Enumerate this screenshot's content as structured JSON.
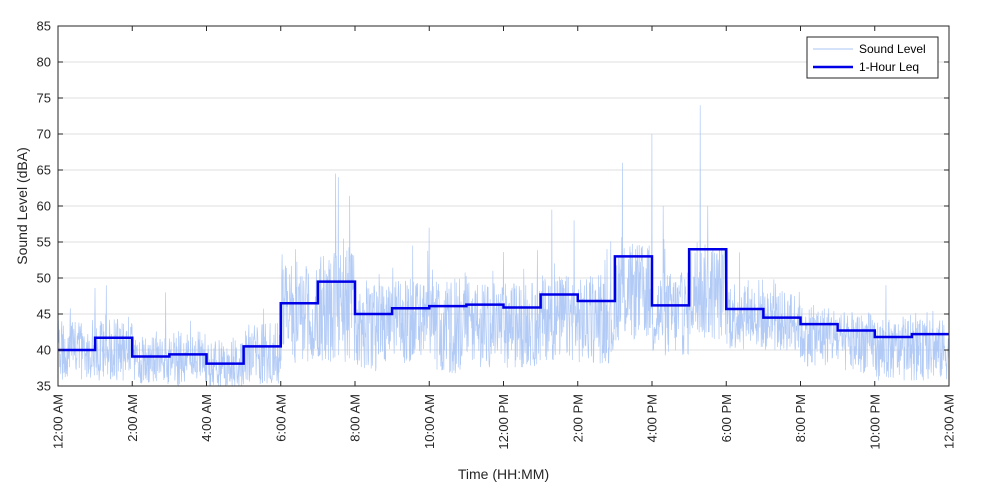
{
  "chart_data": {
    "type": "line",
    "xlabel": "Time (HH:MM)",
    "ylabel": "Sound Level (dBA)",
    "ylim": [
      35,
      85
    ],
    "yticks": [
      35,
      40,
      45,
      50,
      55,
      60,
      65,
      70,
      75,
      80,
      85
    ],
    "xlim_hours": [
      0,
      24
    ],
    "xticks": [
      {
        "hour": 0,
        "label": "12:00 AM"
      },
      {
        "hour": 2,
        "label": "2:00 AM"
      },
      {
        "hour": 4,
        "label": "4:00 AM"
      },
      {
        "hour": 6,
        "label": "6:00 AM"
      },
      {
        "hour": 8,
        "label": "8:00 AM"
      },
      {
        "hour": 10,
        "label": "10:00 AM"
      },
      {
        "hour": 12,
        "label": "12:00 PM"
      },
      {
        "hour": 14,
        "label": "2:00 PM"
      },
      {
        "hour": 16,
        "label": "4:00 PM"
      },
      {
        "hour": 18,
        "label": "6:00 PM"
      },
      {
        "hour": 20,
        "label": "8:00 PM"
      },
      {
        "hour": 22,
        "label": "10:00 PM"
      },
      {
        "hour": 24,
        "label": "12:00 AM"
      }
    ],
    "grid": "y-major",
    "legend_position": "top-right",
    "series": [
      {
        "name": "Sound Level",
        "style": "thin-line",
        "color": "#a9c4f5",
        "hourly_base": [
          40,
          40,
          38.5,
          38.8,
          38,
          39.5,
          45,
          46,
          43,
          44,
          43.5,
          43.5,
          43.5,
          44.5,
          44,
          48,
          45,
          48,
          45,
          44,
          42,
          41,
          40,
          40
        ],
        "hourly_spread": [
          5,
          5,
          4,
          4.5,
          4,
          5,
          8,
          9,
          7,
          7,
          8,
          7,
          7,
          7,
          7,
          8,
          7,
          8,
          6,
          5,
          5,
          5,
          5,
          5
        ],
        "peaks": [
          {
            "hour": 1.3,
            "value": 49
          },
          {
            "hour": 2.9,
            "value": 48
          },
          {
            "hour": 6.4,
            "value": 54
          },
          {
            "hour": 7.48,
            "value": 64.5
          },
          {
            "hour": 7.55,
            "value": 64
          },
          {
            "hour": 10.0,
            "value": 57
          },
          {
            "hour": 13.3,
            "value": 59.5
          },
          {
            "hour": 13.9,
            "value": 58
          },
          {
            "hour": 15.2,
            "value": 66
          },
          {
            "hour": 16.0,
            "value": 70
          },
          {
            "hour": 16.3,
            "value": 60
          },
          {
            "hour": 17.3,
            "value": 74
          },
          {
            "hour": 17.5,
            "value": 60
          },
          {
            "hour": 22.3,
            "value": 49
          }
        ]
      },
      {
        "name": "1-Hour Leq",
        "style": "step",
        "color": "#0000e6",
        "hour_start": [
          0,
          1,
          2,
          3,
          4,
          5,
          6,
          7,
          8,
          9,
          10,
          11,
          12,
          13,
          14,
          15,
          16,
          17,
          18,
          19,
          20,
          21,
          22,
          23
        ],
        "values": [
          40.0,
          41.7,
          39.1,
          39.4,
          38.1,
          40.5,
          46.5,
          49.5,
          45.0,
          45.8,
          46.1,
          46.3,
          45.9,
          47.7,
          46.8,
          53.0,
          46.2,
          54.0,
          45.7,
          44.5,
          43.6,
          42.7,
          41.8,
          42.2
        ]
      }
    ]
  }
}
